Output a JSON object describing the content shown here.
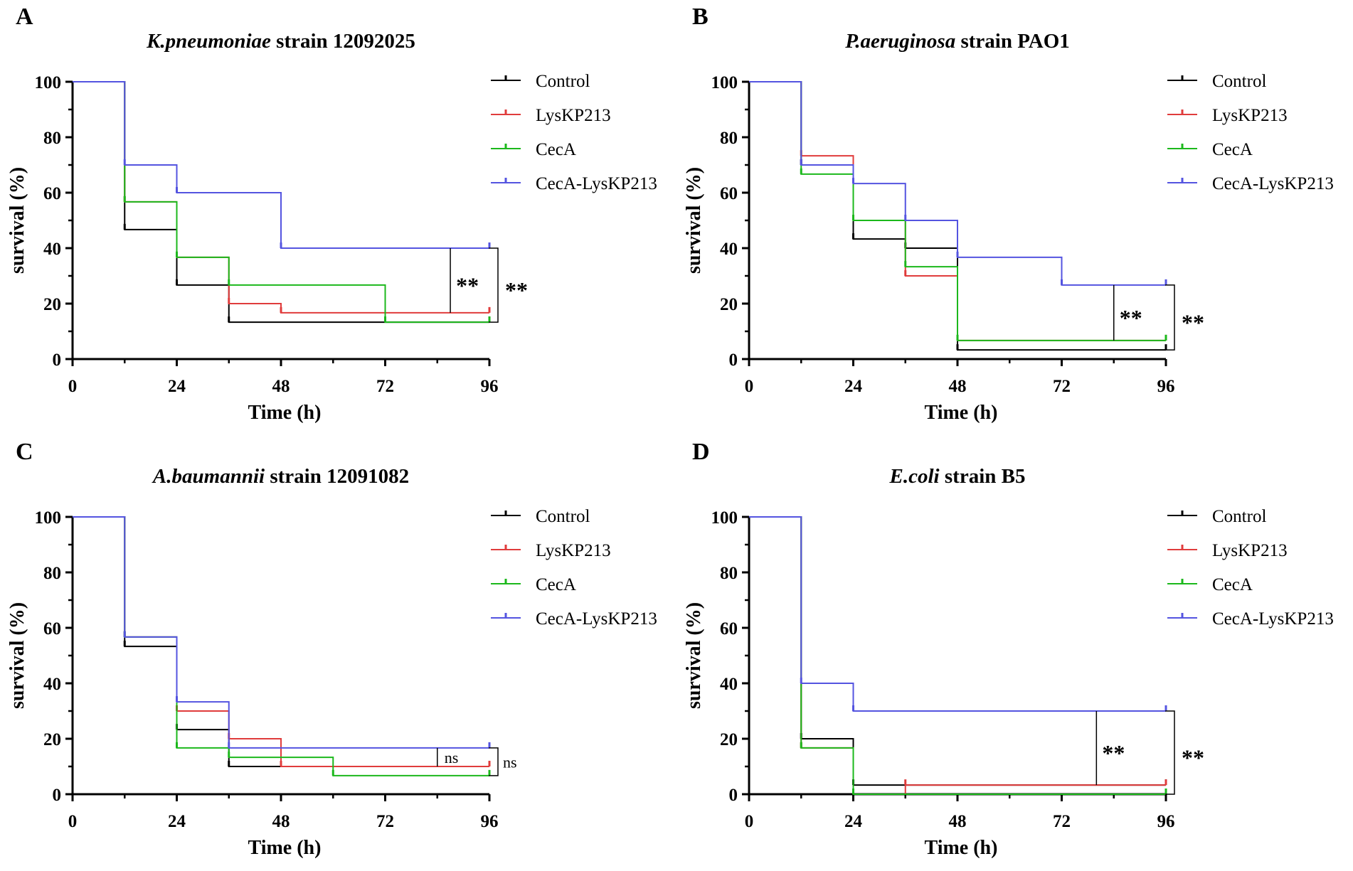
{
  "figure": {
    "colors": {
      "Control": "#000000",
      "LysKP213": "#e03c3c",
      "CecA": "#1cb81c",
      "CecA-LysKP213": "#5454e0"
    }
  },
  "chart_data": [
    {
      "type": "survival_step",
      "panel": "A",
      "title_italic": "K.pneumoniae",
      "title_rest": " strain 12092025",
      "xlabel": "Time (h)",
      "ylabel": "survival (%)",
      "xlim": [
        0,
        96
      ],
      "ylim": [
        0,
        100
      ],
      "xticks": [
        "0",
        "24",
        "48",
        "72",
        "96"
      ],
      "yticks": [
        "0",
        "20",
        "40",
        "60",
        "80",
        "100"
      ],
      "series": [
        {
          "name": "Control",
          "steps": [
            [
              0,
              100
            ],
            [
              12,
              46.7
            ],
            [
              24,
              26.7
            ],
            [
              36,
              13.3
            ],
            [
              96,
              13.3
            ]
          ]
        },
        {
          "name": "LysKP213",
          "steps": [
            [
              0,
              100
            ],
            [
              12,
              56.7
            ],
            [
              24,
              36.7
            ],
            [
              36,
              20
            ],
            [
              48,
              16.7
            ],
            [
              96,
              16.7
            ]
          ]
        },
        {
          "name": "CecA",
          "steps": [
            [
              0,
              100
            ],
            [
              12,
              56.7
            ],
            [
              24,
              36.7
            ],
            [
              36,
              26.7
            ],
            [
              72,
              13.3
            ],
            [
              96,
              13.3
            ]
          ]
        },
        {
          "name": "CecA-LysKP213",
          "steps": [
            [
              0,
              100
            ],
            [
              12,
              70
            ],
            [
              24,
              60
            ],
            [
              48,
              40
            ],
            [
              96,
              40
            ]
          ]
        }
      ],
      "significance": [
        {
          "label": "**",
          "kind": "inner",
          "x": 87,
          "y_low": 16.7,
          "y_high": 40
        },
        {
          "label": "**",
          "kind": "outer",
          "y_low": 13.3,
          "y_high": 40
        }
      ]
    },
    {
      "type": "survival_step",
      "panel": "B",
      "title_italic": "P.aeruginosa",
      "title_rest": " strain PAO1",
      "xlabel": "Time (h)",
      "ylabel": "survival (%)",
      "xlim": [
        0,
        96
      ],
      "ylim": [
        0,
        100
      ],
      "xticks": [
        "0",
        "24",
        "48",
        "72",
        "96"
      ],
      "yticks": [
        "0",
        "20",
        "40",
        "60",
        "80",
        "100"
      ],
      "series": [
        {
          "name": "Control",
          "steps": [
            [
              0,
              100
            ],
            [
              12,
              70
            ],
            [
              24,
              43.3
            ],
            [
              36,
              40
            ],
            [
              48,
              3.3
            ],
            [
              96,
              3.3
            ]
          ]
        },
        {
          "name": "LysKP213",
          "steps": [
            [
              0,
              100
            ],
            [
              12,
              73.3
            ],
            [
              24,
              50
            ],
            [
              36,
              30
            ],
            [
              48,
              6.7
            ],
            [
              96,
              6.7
            ]
          ]
        },
        {
          "name": "CecA",
          "steps": [
            [
              0,
              100
            ],
            [
              12,
              66.7
            ],
            [
              24,
              50
            ],
            [
              36,
              33.3
            ],
            [
              48,
              6.7
            ],
            [
              96,
              6.7
            ]
          ]
        },
        {
          "name": "CecA-LysKP213",
          "steps": [
            [
              0,
              100
            ],
            [
              12,
              70
            ],
            [
              24,
              63.3
            ],
            [
              36,
              50
            ],
            [
              48,
              36.7
            ],
            [
              72,
              26.7
            ],
            [
              96,
              26.7
            ]
          ]
        }
      ],
      "significance": [
        {
          "label": "**",
          "kind": "inner",
          "x": 84,
          "y_low": 6.7,
          "y_high": 26.7
        },
        {
          "label": "**",
          "kind": "outer",
          "y_low": 3.3,
          "y_high": 26.7
        }
      ]
    },
    {
      "type": "survival_step",
      "panel": "C",
      "title_italic": "A.baumannii",
      "title_rest": " strain 12091082",
      "xlabel": "Time (h)",
      "ylabel": "survival (%)",
      "xlim": [
        0,
        96
      ],
      "ylim": [
        0,
        100
      ],
      "xticks": [
        "0",
        "24",
        "48",
        "72",
        "96"
      ],
      "yticks": [
        "0",
        "20",
        "40",
        "60",
        "80",
        "100"
      ],
      "series": [
        {
          "name": "Control",
          "steps": [
            [
              0,
              100
            ],
            [
              12,
              53.3
            ],
            [
              24,
              23.3
            ],
            [
              36,
              10
            ],
            [
              96,
              10
            ]
          ]
        },
        {
          "name": "LysKP213",
          "steps": [
            [
              0,
              100
            ],
            [
              12,
              56.7
            ],
            [
              24,
              30
            ],
            [
              36,
              20
            ],
            [
              48,
              10
            ],
            [
              96,
              10
            ]
          ]
        },
        {
          "name": "CecA",
          "steps": [
            [
              0,
              100
            ],
            [
              12,
              56.7
            ],
            [
              24,
              16.7
            ],
            [
              36,
              13.3
            ],
            [
              60,
              6.7
            ],
            [
              96,
              6.7
            ]
          ]
        },
        {
          "name": "CecA-LysKP213",
          "steps": [
            [
              0,
              100
            ],
            [
              12,
              56.7
            ],
            [
              24,
              33.3
            ],
            [
              36,
              16.7
            ],
            [
              96,
              16.7
            ]
          ]
        }
      ],
      "significance": [
        {
          "label": "ns",
          "kind": "inner",
          "x": 84,
          "y_low": 10,
          "y_high": 16.7
        },
        {
          "label": "ns",
          "kind": "outer",
          "y_low": 6.7,
          "y_high": 16.7
        }
      ]
    },
    {
      "type": "survival_step",
      "panel": "D",
      "title_italic": "E.coli",
      "title_rest": " strain B5",
      "xlabel": "Time (h)",
      "ylabel": "survival (%)",
      "xlim": [
        0,
        96
      ],
      "ylim": [
        0,
        100
      ],
      "xticks": [
        "0",
        "24",
        "48",
        "72",
        "96"
      ],
      "yticks": [
        "0",
        "20",
        "40",
        "60",
        "80",
        "100"
      ],
      "series": [
        {
          "name": "Control",
          "steps": [
            [
              0,
              100
            ],
            [
              12,
              20
            ],
            [
              24,
              3.3
            ],
            [
              96,
              3.3
            ]
          ]
        },
        {
          "name": "LysKP213",
          "steps": [
            [
              0,
              100
            ],
            [
              12,
              16.7
            ],
            [
              24,
              0
            ],
            [
              36,
              3.3
            ],
            [
              96,
              3.3
            ]
          ]
        },
        {
          "name": "CecA",
          "steps": [
            [
              0,
              100
            ],
            [
              12,
              16.7
            ],
            [
              24,
              0
            ],
            [
              96,
              0
            ]
          ]
        },
        {
          "name": "CecA-LysKP213",
          "steps": [
            [
              0,
              100
            ],
            [
              12,
              40
            ],
            [
              24,
              30
            ],
            [
              96,
              30
            ]
          ]
        }
      ],
      "significance": [
        {
          "label": "**",
          "kind": "inner",
          "x": 80,
          "y_low": 3.3,
          "y_high": 30
        },
        {
          "label": "**",
          "kind": "outer",
          "y_low": 0,
          "y_high": 30
        }
      ]
    }
  ]
}
